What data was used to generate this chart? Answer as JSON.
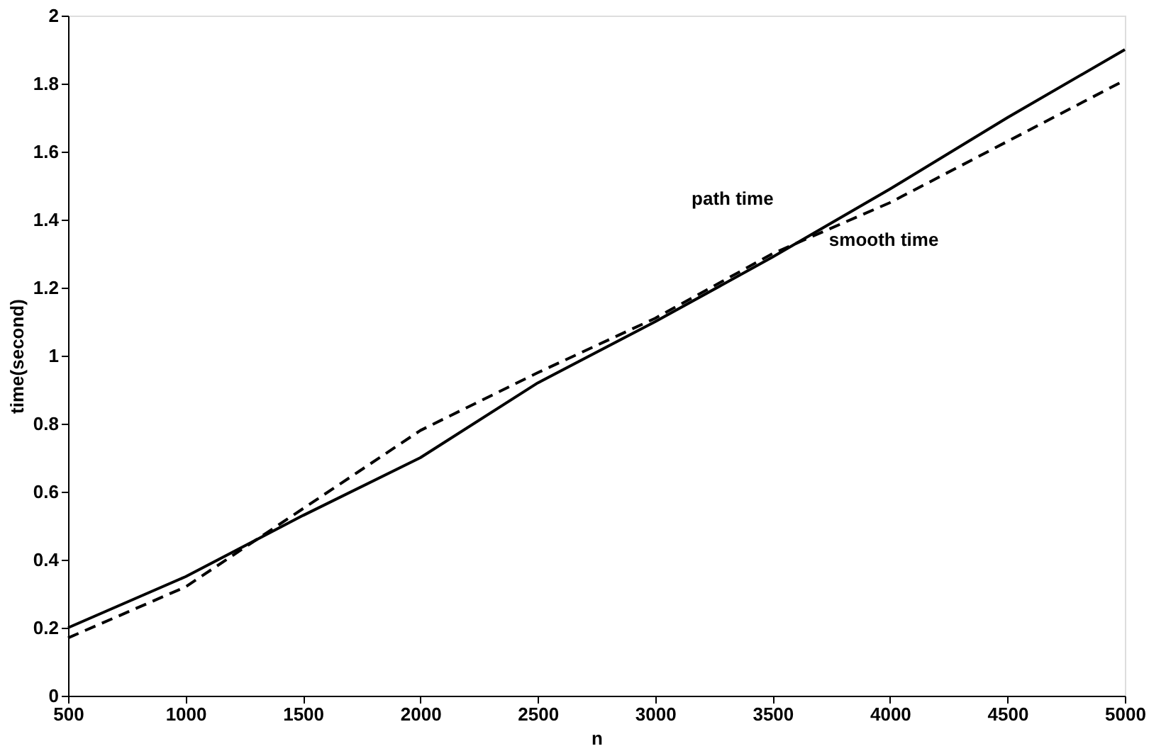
{
  "chart_data": {
    "type": "line",
    "xlabel": "n",
    "ylabel": "time(second)",
    "x": [
      500,
      1000,
      1500,
      2000,
      2500,
      3000,
      3500,
      4000,
      4500,
      5000
    ],
    "series": [
      {
        "color": "#000000",
        "line_style": "solid",
        "values": [
          0.2,
          0.35,
          0.53,
          0.7,
          0.92,
          1.1,
          1.29,
          1.49,
          1.7,
          1.9
        ]
      },
      {
        "color": "#000000",
        "line_style": "dashed",
        "values": [
          0.17,
          0.32,
          0.55,
          0.78,
          0.95,
          1.11,
          1.3,
          1.45,
          1.63,
          1.81
        ]
      }
    ],
    "annotations": [
      "path time",
      "smooth time"
    ],
    "xlim": [
      500,
      5000
    ],
    "xticks": [
      500,
      1000,
      1500,
      2000,
      2500,
      3000,
      3500,
      4000,
      4500,
      5000
    ],
    "ylim": [
      0,
      2
    ],
    "yticks": [
      0,
      0.2,
      0.4,
      0.6,
      0.8,
      1,
      1.2,
      1.4,
      1.6,
      1.8,
      2
    ],
    "grid": false,
    "marker": "none"
  }
}
